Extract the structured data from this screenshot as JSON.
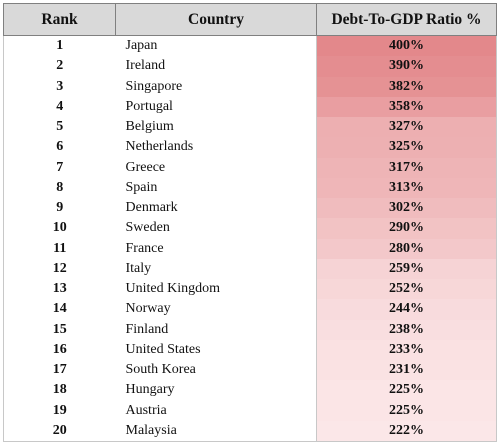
{
  "colors": {
    "header_bg": "#d9d9d9",
    "heat_high": "#e3888b",
    "heat_low": "#fbe7e8"
  },
  "chart_data": {
    "type": "table",
    "columns": [
      "Rank",
      "Country",
      "Debt-To-GDP Ratio %"
    ],
    "rows": [
      {
        "rank": "1",
        "country": "Japan",
        "ratio": "400%",
        "value": 400
      },
      {
        "rank": "2",
        "country": "Ireland",
        "ratio": "390%",
        "value": 390
      },
      {
        "rank": "3",
        "country": "Singapore",
        "ratio": "382%",
        "value": 382
      },
      {
        "rank": "4",
        "country": "Portugal",
        "ratio": "358%",
        "value": 358
      },
      {
        "rank": "5",
        "country": "Belgium",
        "ratio": "327%",
        "value": 327
      },
      {
        "rank": "6",
        "country": "Netherlands",
        "ratio": "325%",
        "value": 325
      },
      {
        "rank": "7",
        "country": "Greece",
        "ratio": "317%",
        "value": 317
      },
      {
        "rank": "8",
        "country": "Spain",
        "ratio": "313%",
        "value": 313
      },
      {
        "rank": "9",
        "country": "Denmark",
        "ratio": "302%",
        "value": 302
      },
      {
        "rank": "10",
        "country": "Sweden",
        "ratio": "290%",
        "value": 290
      },
      {
        "rank": "11",
        "country": "France",
        "ratio": "280%",
        "value": 280
      },
      {
        "rank": "12",
        "country": "Italy",
        "ratio": "259%",
        "value": 259
      },
      {
        "rank": "13",
        "country": "United Kingdom",
        "ratio": "252%",
        "value": 252
      },
      {
        "rank": "14",
        "country": "Norway",
        "ratio": "244%",
        "value": 244
      },
      {
        "rank": "15",
        "country": "Finland",
        "ratio": "238%",
        "value": 238
      },
      {
        "rank": "16",
        "country": "United States",
        "ratio": "233%",
        "value": 233
      },
      {
        "rank": "17",
        "country": "South Korea",
        "ratio": "231%",
        "value": 231
      },
      {
        "rank": "18",
        "country": "Hungary",
        "ratio": "225%",
        "value": 225
      },
      {
        "rank": "19",
        "country": "Austria",
        "ratio": "225%",
        "value": 225
      },
      {
        "rank": "20",
        "country": "Malaysia",
        "ratio": "222%",
        "value": 222
      }
    ]
  }
}
